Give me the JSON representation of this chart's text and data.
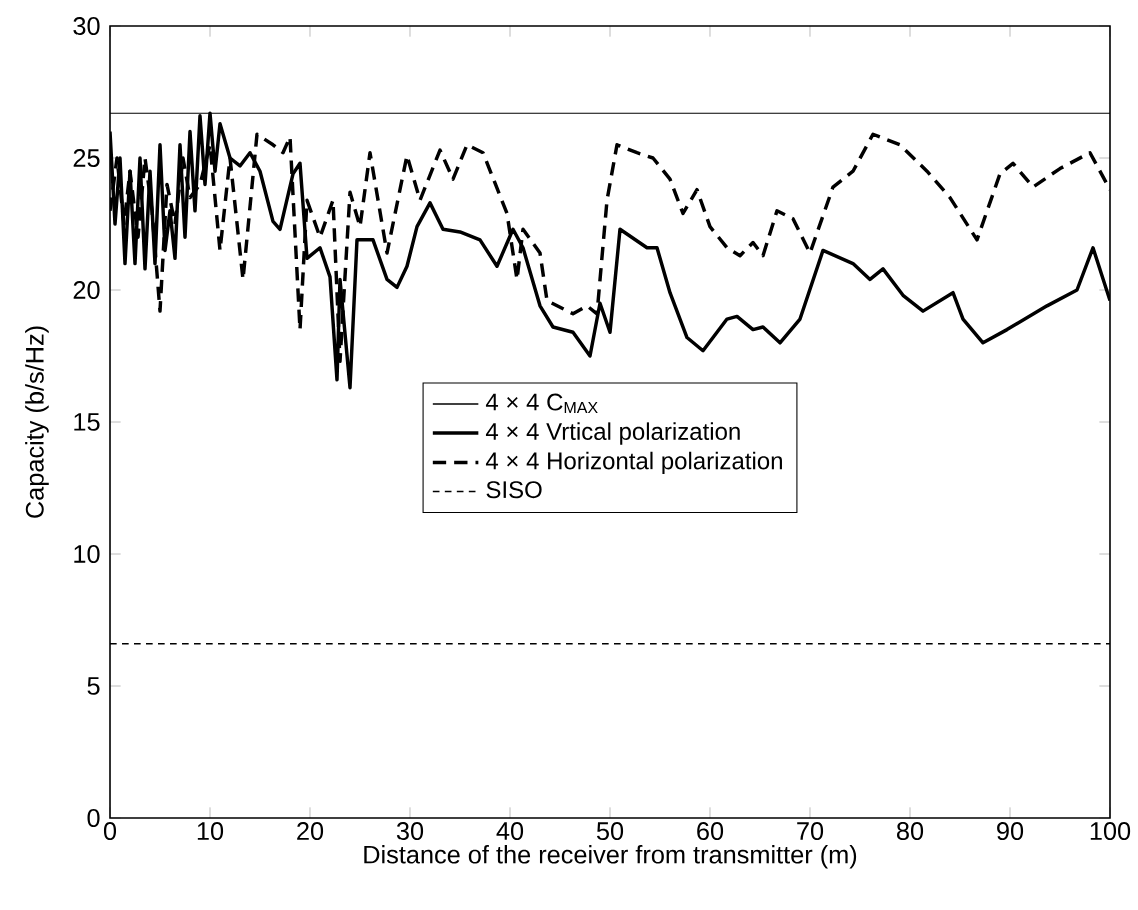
{
  "chart_data": {
    "type": "line",
    "xlabel": "Distance of the receiver from transmitter (m)",
    "ylabel": "Capacity (b/s/Hz)",
    "xlim": [
      0,
      100
    ],
    "ylim": [
      0,
      30
    ],
    "xticks": [
      0,
      10,
      20,
      30,
      40,
      50,
      60,
      70,
      80,
      90,
      100
    ],
    "yticks": [
      0,
      5,
      10,
      15,
      20,
      25,
      30
    ],
    "legend": "center",
    "grid": false,
    "marker": "none",
    "series": [
      {
        "name": "4 × 4  C$_{MAX}$",
        "color": "#000000",
        "line_style": "solid",
        "x": [
          0,
          100
        ],
        "values": [
          26.7,
          26.7
        ]
      },
      {
        "name": "4 × 4  Vrtical polarization",
        "color": "#000000",
        "line_style": "solid",
        "x": [
          0,
          0.5,
          1,
          1.5,
          2,
          2.5,
          3,
          3.5,
          4,
          4.5,
          5,
          5.5,
          6,
          6.5,
          7,
          7.5,
          8,
          8.5,
          9,
          9.5,
          10,
          10.5,
          11,
          12,
          13,
          14,
          15,
          16.3,
          17,
          18.3,
          19,
          19.7,
          21,
          22,
          22.7,
          23,
          24,
          24.7,
          26.3,
          27.7,
          28.7,
          29.7,
          30.7,
          32,
          33.3,
          35,
          37,
          38.7,
          40.3,
          41.3,
          43,
          44.3,
          46.3,
          48,
          49,
          50,
          51,
          53.7,
          54.7,
          56,
          57.7,
          59.3,
          61.7,
          62.7,
          64.3,
          65.3,
          67,
          69,
          71.3,
          74.3,
          76,
          77.3,
          79.3,
          81.3,
          84.3,
          85.3,
          87.3,
          89.7,
          93.7,
          96.7,
          98.3,
          100
        ],
        "values": [
          26,
          22.5,
          25,
          21,
          24.5,
          21,
          25,
          20.8,
          24.5,
          21,
          25.5,
          21.5,
          23,
          21.2,
          25.5,
          22,
          26,
          23,
          26.6,
          24,
          26.7,
          24.5,
          26.3,
          25,
          24.7,
          25.2,
          24.5,
          22.6,
          22.3,
          24.4,
          24.8,
          21.2,
          21.6,
          20.5,
          16.6,
          20.4,
          16.3,
          21.9,
          21.9,
          20.4,
          20.1,
          20.9,
          22.4,
          23.3,
          22.3,
          22.2,
          21.9,
          20.9,
          22.3,
          21.6,
          19.4,
          18.6,
          18.4,
          17.5,
          19.5,
          18.4,
          22.3,
          21.6,
          21.6,
          19.9,
          18.2,
          17.7,
          18.9,
          19,
          18.5,
          18.6,
          18,
          18.9,
          21.5,
          21,
          20.4,
          20.8,
          19.8,
          19.2,
          19.9,
          18.9,
          18,
          18.5,
          19.4,
          20,
          21.6,
          19.6
        ]
      },
      {
        "name": "4 × 4  Horizontal polarization",
        "color": "#000000",
        "line_style": "dashed",
        "x": [
          0,
          0.7,
          1.4,
          2,
          2.8,
          3.5,
          4.2,
          5,
          5.7,
          6.5,
          7.3,
          8,
          9,
          10,
          11,
          12,
          13.3,
          14.7,
          16.3,
          17.3,
          18,
          19,
          19.7,
          21,
          22.3,
          23,
          24,
          25,
          26,
          27.7,
          29.7,
          31,
          33,
          34.3,
          35.7,
          37.3,
          39.7,
          40.7,
          41.3,
          43,
          43.7,
          46.3,
          47.7,
          48.7,
          49.7,
          50.7,
          52.7,
          54.3,
          56,
          57.3,
          58.7,
          60,
          61.7,
          63,
          64.3,
          65.3,
          66.7,
          68.3,
          70,
          72.3,
          74.3,
          76.3,
          79,
          81.7,
          84,
          86.7,
          89,
          90.3,
          92.3,
          95,
          98,
          100
        ],
        "values": [
          23,
          25,
          22.5,
          24.5,
          22,
          25,
          23,
          19.2,
          24,
          22.5,
          25,
          23.5,
          24,
          25.5,
          21.5,
          25,
          20.4,
          25.9,
          25.5,
          25.2,
          25.8,
          18.5,
          23.4,
          22,
          23.4,
          17.3,
          23.7,
          22.4,
          25.2,
          21.4,
          25.1,
          23.4,
          25.3,
          24.2,
          25.5,
          25.2,
          22.9,
          20.4,
          22.3,
          21.4,
          19.6,
          19.1,
          19.4,
          19.1,
          23.4,
          25.5,
          25.2,
          25,
          24.2,
          22.9,
          23.8,
          22.4,
          21.6,
          21.3,
          21.8,
          21.3,
          23,
          22.7,
          21.4,
          23.9,
          24.5,
          25.9,
          25.5,
          24.5,
          23.5,
          21.9,
          24.4,
          24.8,
          23.9,
          24.6,
          25.2,
          23.8
        ]
      },
      {
        "name": "SISO",
        "color": "#000000",
        "line_style": "dotted",
        "x": [
          0,
          100
        ],
        "values": [
          6.6,
          6.6
        ]
      }
    ]
  }
}
